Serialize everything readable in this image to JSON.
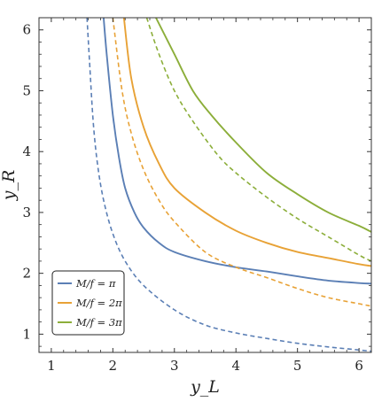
{
  "chart_data": {
    "type": "line",
    "title": "",
    "xlabel": "y_L",
    "ylabel": "y_R",
    "xlim": [
      0.8,
      6.2
    ],
    "ylim": [
      0.7,
      6.2
    ],
    "xticks": [
      1,
      2,
      3,
      4,
      5,
      6
    ],
    "yticks": [
      1,
      2,
      3,
      4,
      5,
      6
    ],
    "grid": false,
    "legend_position": "bottom-left",
    "series": [
      {
        "name": "M/f = π",
        "color": "#5b7fb5",
        "style": "solid",
        "points": [
          [
            1.85,
            6.2
          ],
          [
            1.9,
            5.6
          ],
          [
            2.0,
            4.6
          ],
          [
            2.1,
            3.9
          ],
          [
            2.2,
            3.4
          ],
          [
            2.35,
            3.0
          ],
          [
            2.5,
            2.75
          ],
          [
            2.75,
            2.5
          ],
          [
            3.0,
            2.35
          ],
          [
            3.5,
            2.2
          ],
          [
            4.0,
            2.1
          ],
          [
            4.5,
            2.03
          ],
          [
            5.0,
            1.95
          ],
          [
            5.5,
            1.88
          ],
          [
            6.0,
            1.84
          ],
          [
            6.2,
            1.83
          ]
        ]
      },
      {
        "name": "",
        "color": "#5b7fb5",
        "style": "dashed",
        "points": [
          [
            1.58,
            6.2
          ],
          [
            1.62,
            5.5
          ],
          [
            1.68,
            4.5
          ],
          [
            1.75,
            3.8
          ],
          [
            1.85,
            3.2
          ],
          [
            2.0,
            2.65
          ],
          [
            2.2,
            2.2
          ],
          [
            2.5,
            1.8
          ],
          [
            3.0,
            1.4
          ],
          [
            3.5,
            1.15
          ],
          [
            4.0,
            1.02
          ],
          [
            4.5,
            0.93
          ],
          [
            5.0,
            0.85
          ],
          [
            5.5,
            0.79
          ],
          [
            6.0,
            0.74
          ],
          [
            6.2,
            0.72
          ]
        ]
      },
      {
        "name": "M/f = 2π",
        "color": "#e8a236",
        "style": "solid",
        "points": [
          [
            2.18,
            6.2
          ],
          [
            2.3,
            5.2
          ],
          [
            2.5,
            4.4
          ],
          [
            2.75,
            3.8
          ],
          [
            3.0,
            3.4
          ],
          [
            3.5,
            3.0
          ],
          [
            4.0,
            2.7
          ],
          [
            4.5,
            2.5
          ],
          [
            5.0,
            2.35
          ],
          [
            5.5,
            2.25
          ],
          [
            6.0,
            2.15
          ],
          [
            6.2,
            2.12
          ]
        ]
      },
      {
        "name": "",
        "color": "#e8a236",
        "style": "dashed",
        "points": [
          [
            2.0,
            6.2
          ],
          [
            2.15,
            5.0
          ],
          [
            2.3,
            4.3
          ],
          [
            2.5,
            3.7
          ],
          [
            2.75,
            3.2
          ],
          [
            3.0,
            2.85
          ],
          [
            3.5,
            2.35
          ],
          [
            4.0,
            2.1
          ],
          [
            4.5,
            1.93
          ],
          [
            5.0,
            1.75
          ],
          [
            5.5,
            1.6
          ],
          [
            6.0,
            1.5
          ],
          [
            6.2,
            1.46
          ]
        ]
      },
      {
        "name": "M/f = 3π",
        "color": "#8cae3a",
        "style": "solid",
        "points": [
          [
            2.7,
            6.2
          ],
          [
            3.0,
            5.6
          ],
          [
            3.3,
            5.0
          ],
          [
            3.6,
            4.6
          ],
          [
            4.0,
            4.15
          ],
          [
            4.5,
            3.65
          ],
          [
            5.0,
            3.3
          ],
          [
            5.5,
            3.0
          ],
          [
            6.0,
            2.78
          ],
          [
            6.2,
            2.68
          ]
        ]
      },
      {
        "name": "",
        "color": "#8cae3a",
        "style": "dashed",
        "points": [
          [
            2.55,
            6.2
          ],
          [
            2.75,
            5.6
          ],
          [
            3.0,
            5.0
          ],
          [
            3.3,
            4.5
          ],
          [
            3.7,
            3.95
          ],
          [
            4.0,
            3.65
          ],
          [
            4.5,
            3.25
          ],
          [
            5.0,
            2.9
          ],
          [
            5.5,
            2.6
          ],
          [
            6.0,
            2.3
          ],
          [
            6.2,
            2.2
          ]
        ]
      }
    ]
  }
}
